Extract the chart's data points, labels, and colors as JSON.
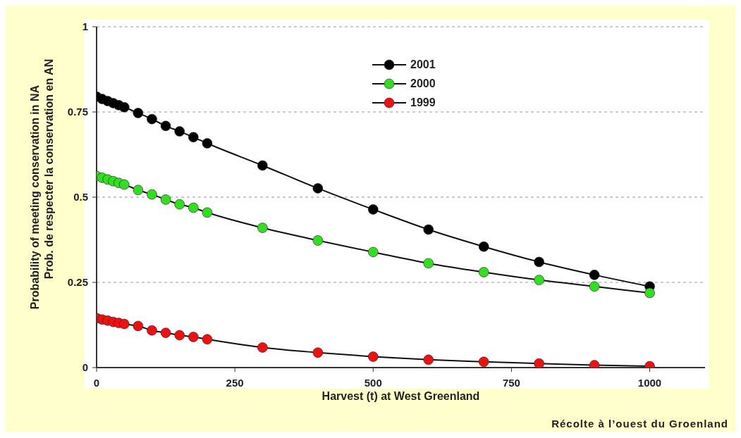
{
  "chart_data": {
    "type": "line",
    "xlabel": "Harvest (t) at West Greenland",
    "ylabel": "Probability of meeting conservation in NA",
    "annotations": [
      "Prob. de respecter la conservation en AN",
      "Récolte à l’ouest du Groenland"
    ],
    "x": [
      0,
      10,
      20,
      30,
      40,
      50,
      75,
      100,
      125,
      150,
      175,
      200,
      300,
      400,
      500,
      600,
      700,
      800,
      900,
      1000
    ],
    "series": [
      {
        "name": "2001",
        "color": "#000000",
        "values": [
          0.795,
          0.788,
          0.782,
          0.776,
          0.77,
          0.764,
          0.747,
          0.729,
          0.709,
          0.693,
          0.676,
          0.658,
          0.593,
          0.526,
          0.464,
          0.405,
          0.355,
          0.31,
          0.272,
          0.238
        ]
      },
      {
        "name": "2000",
        "color": "#33dd22",
        "values": [
          0.562,
          0.557,
          0.552,
          0.547,
          0.542,
          0.537,
          0.521,
          0.508,
          0.493,
          0.479,
          0.469,
          0.455,
          0.41,
          0.373,
          0.339,
          0.306,
          0.28,
          0.257,
          0.238,
          0.219
        ]
      },
      {
        "name": "1999",
        "color": "#ee1111",
        "values": [
          0.145,
          0.141,
          0.138,
          0.134,
          0.131,
          0.128,
          0.122,
          0.109,
          0.102,
          0.095,
          0.09,
          0.083,
          0.059,
          0.044,
          0.032,
          0.023,
          0.017,
          0.012,
          0.007,
          0.004
        ]
      }
    ],
    "xlim": [
      0,
      1100
    ],
    "xticks": [
      0,
      250,
      500,
      750,
      1000
    ],
    "ylim": [
      0,
      1
    ],
    "yticks": [
      0,
      0.25,
      0.5,
      0.75,
      1
    ],
    "grid": "y",
    "legend": "top",
    "marker": "circle",
    "line_style": "solid"
  }
}
